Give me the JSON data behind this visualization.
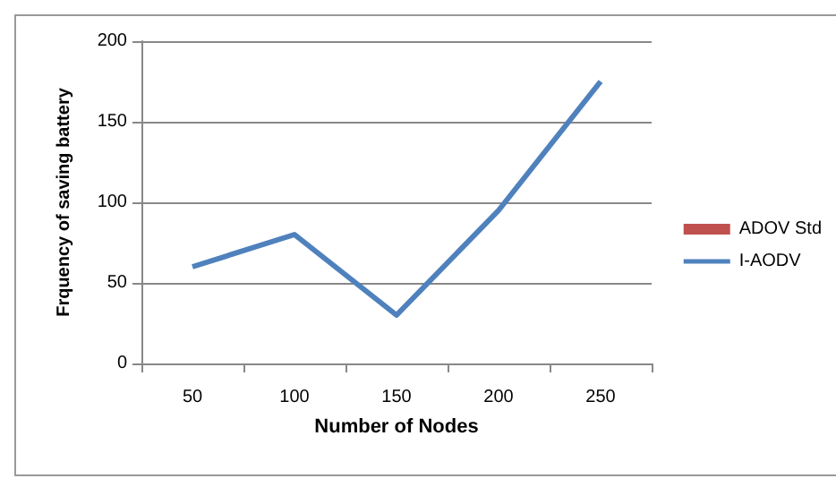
{
  "chart_data": {
    "type": "line",
    "xlabel": "Number of Nodes",
    "ylabel": "Frquency of saving battery",
    "categories": [
      "50",
      "100",
      "150",
      "200",
      "250"
    ],
    "series": [
      {
        "name": "ADOV Std",
        "type": "bar",
        "color": "#c0504d",
        "values": [
          null,
          null,
          null,
          null,
          null
        ]
      },
      {
        "name": "I-AODV",
        "color": "#4f81bd",
        "values": [
          60,
          80,
          30,
          95,
          175
        ]
      }
    ],
    "ylim": [
      0,
      200
    ],
    "yticks": [
      0,
      50,
      100,
      150,
      200
    ],
    "grid": "y",
    "legend": "right",
    "marker": "none"
  }
}
